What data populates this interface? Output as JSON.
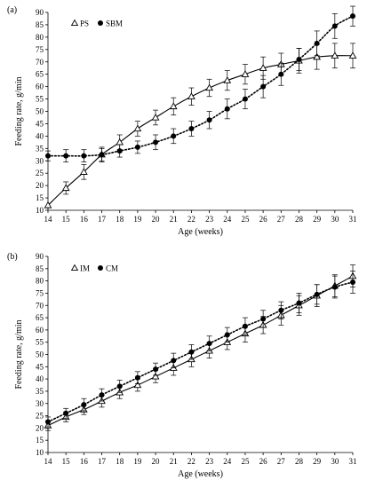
{
  "chart_data": [
    {
      "type": "line",
      "panel_label": "(a)",
      "xlabel": "Age (weeks)",
      "ylabel": "Feeding rate, g/min",
      "x": [
        14,
        15,
        16,
        17,
        18,
        19,
        20,
        21,
        22,
        23,
        24,
        25,
        26,
        27,
        28,
        29,
        30,
        31
      ],
      "xlim": [
        14,
        31
      ],
      "ylim": [
        10,
        90
      ],
      "ytick_step": 5,
      "legend_position": "top-left",
      "series": [
        {
          "name": "PS",
          "marker": "open-triangle",
          "line": "solid",
          "values": [
            12,
            19,
            25.5,
            32.5,
            37.5,
            43,
            47.5,
            52,
            56,
            59.5,
            62.5,
            65,
            67.5,
            69,
            70.5,
            72,
            72.5,
            72.5
          ],
          "errors": [
            0,
            2.5,
            3,
            3,
            3,
            3,
            3,
            3.5,
            3.5,
            3.5,
            4,
            4,
            4.5,
            4.5,
            5,
            5,
            5,
            5
          ]
        },
        {
          "name": "SBM",
          "marker": "filled-circle",
          "line": "dotted",
          "values": [
            32,
            32,
            32,
            32.5,
            34,
            35.5,
            37.5,
            40,
            43,
            46.5,
            51,
            55,
            60,
            65,
            71,
            77.5,
            84.5,
            88.5
          ],
          "errors": [
            2,
            2.5,
            2.5,
            2.5,
            2.5,
            2.5,
            3,
            3,
            3,
            3.5,
            4,
            4,
            4.5,
            4.5,
            4.5,
            5,
            5,
            4
          ]
        }
      ]
    },
    {
      "type": "line",
      "panel_label": "(b)",
      "xlabel": "Age (weeks)",
      "ylabel": "Feeding rate, g/min",
      "x": [
        14,
        15,
        16,
        17,
        18,
        19,
        20,
        21,
        22,
        23,
        24,
        25,
        26,
        27,
        28,
        29,
        30,
        31
      ],
      "xlim": [
        14,
        31
      ],
      "ylim": [
        10,
        90
      ],
      "ytick_step": 5,
      "legend_position": "top-left",
      "series": [
        {
          "name": "IM",
          "marker": "open-triangle",
          "line": "solid",
          "values": [
            21,
            24.5,
            27.5,
            31,
            34.5,
            37.5,
            41,
            44.5,
            48,
            51.5,
            55,
            58.5,
            62,
            66,
            70,
            74,
            78,
            82
          ],
          "errors": [
            2,
            2,
            2,
            2.5,
            2.5,
            2.5,
            2.5,
            3,
            3,
            3,
            3,
            3.5,
            3.5,
            4,
            4,
            4.5,
            4.5,
            4.5
          ]
        },
        {
          "name": "CM",
          "marker": "filled-circle",
          "line": "dotted",
          "values": [
            22.5,
            26,
            29.5,
            33.5,
            37,
            40.5,
            44,
            47.5,
            51,
            54.5,
            58,
            61.5,
            64.5,
            68,
            71,
            74.5,
            77.5,
            79.5
          ],
          "errors": [
            2,
            2,
            2.5,
            2.5,
            2.5,
            2.5,
            2.5,
            3,
            3,
            3,
            3,
            3.5,
            3.5,
            3.5,
            4,
            4,
            4.5,
            4.5
          ]
        }
      ]
    }
  ]
}
